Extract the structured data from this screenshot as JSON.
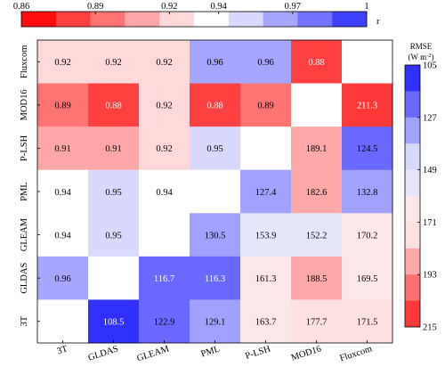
{
  "chart_data": {
    "type": "heatmap",
    "categories": [
      "3T",
      "GLDAS",
      "GLEAM",
      "PML",
      "P-LSH",
      "MOD16",
      "Fluxcom"
    ],
    "rows_top_to_bottom": [
      "Fluxcom",
      "MOD16",
      "P-LSH",
      "PML",
      "GLEAM",
      "GLDAS",
      "3T"
    ],
    "upper_triangle_metric": "r",
    "lower_triangle_metric": "RMSE",
    "values": [
      [
        "0.92",
        "0.92",
        "0.92",
        "0.96",
        "0.96",
        "0.88",
        ""
      ],
      [
        "0.89",
        "0.88",
        "0.92",
        "0.88",
        "0.89",
        "",
        "211.3"
      ],
      [
        "0.91",
        "0.91",
        "0.92",
        "0.95",
        "",
        "189.1",
        "124.5"
      ],
      [
        "0.94",
        "0.95",
        "0.94",
        "",
        "127.4",
        "182.6",
        "132.8"
      ],
      [
        "0.94",
        "0.95",
        "",
        "130.5",
        "153.9",
        "152.2",
        "170.2"
      ],
      [
        "0.96",
        "",
        "116.7",
        "116.3",
        "161.3",
        "188.5",
        "169.5"
      ],
      [
        "",
        "108.5",
        "122.9",
        "129.1",
        "163.7",
        "177.7",
        "171.5"
      ]
    ],
    "r_colorbar": {
      "label": "r",
      "ticks": [
        "0.86",
        "0.89",
        "0.92",
        "0.94",
        "0.97",
        "1"
      ],
      "range": [
        0.86,
        1
      ]
    },
    "rmse_colorbar": {
      "title_line1": "RMSE",
      "title_line2_prefix": "(W m",
      "title_line2_sup": "-2",
      "title_line2_suffix": ")",
      "ticks": [
        "105",
        "127",
        "149",
        "171",
        "193",
        "215"
      ],
      "range": [
        105,
        215
      ]
    },
    "colors": {
      "high_r_low_rmse": "#0000ff",
      "mid": "#ffffff",
      "low_r_high_rmse": "#ff0000",
      "diagonal": "#ffffff"
    },
    "grid": false,
    "legend": "colorbars top and right"
  }
}
